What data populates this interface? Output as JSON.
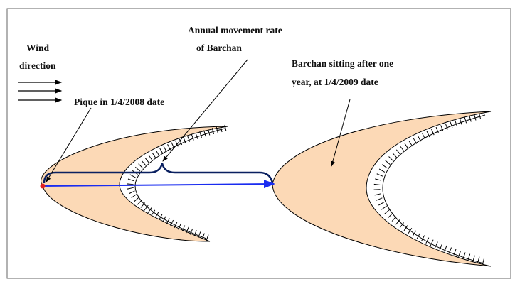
{
  "labels": {
    "wind": [
      "Wind",
      "direction"
    ],
    "rate": [
      "Annual movement rate",
      "of Barchan"
    ],
    "sitting": [
      "Barchan sitting after one",
      "year, at 1/4/2009 date"
    ],
    "pique": [
      "Pique in 1/4/2008 date"
    ]
  }
}
